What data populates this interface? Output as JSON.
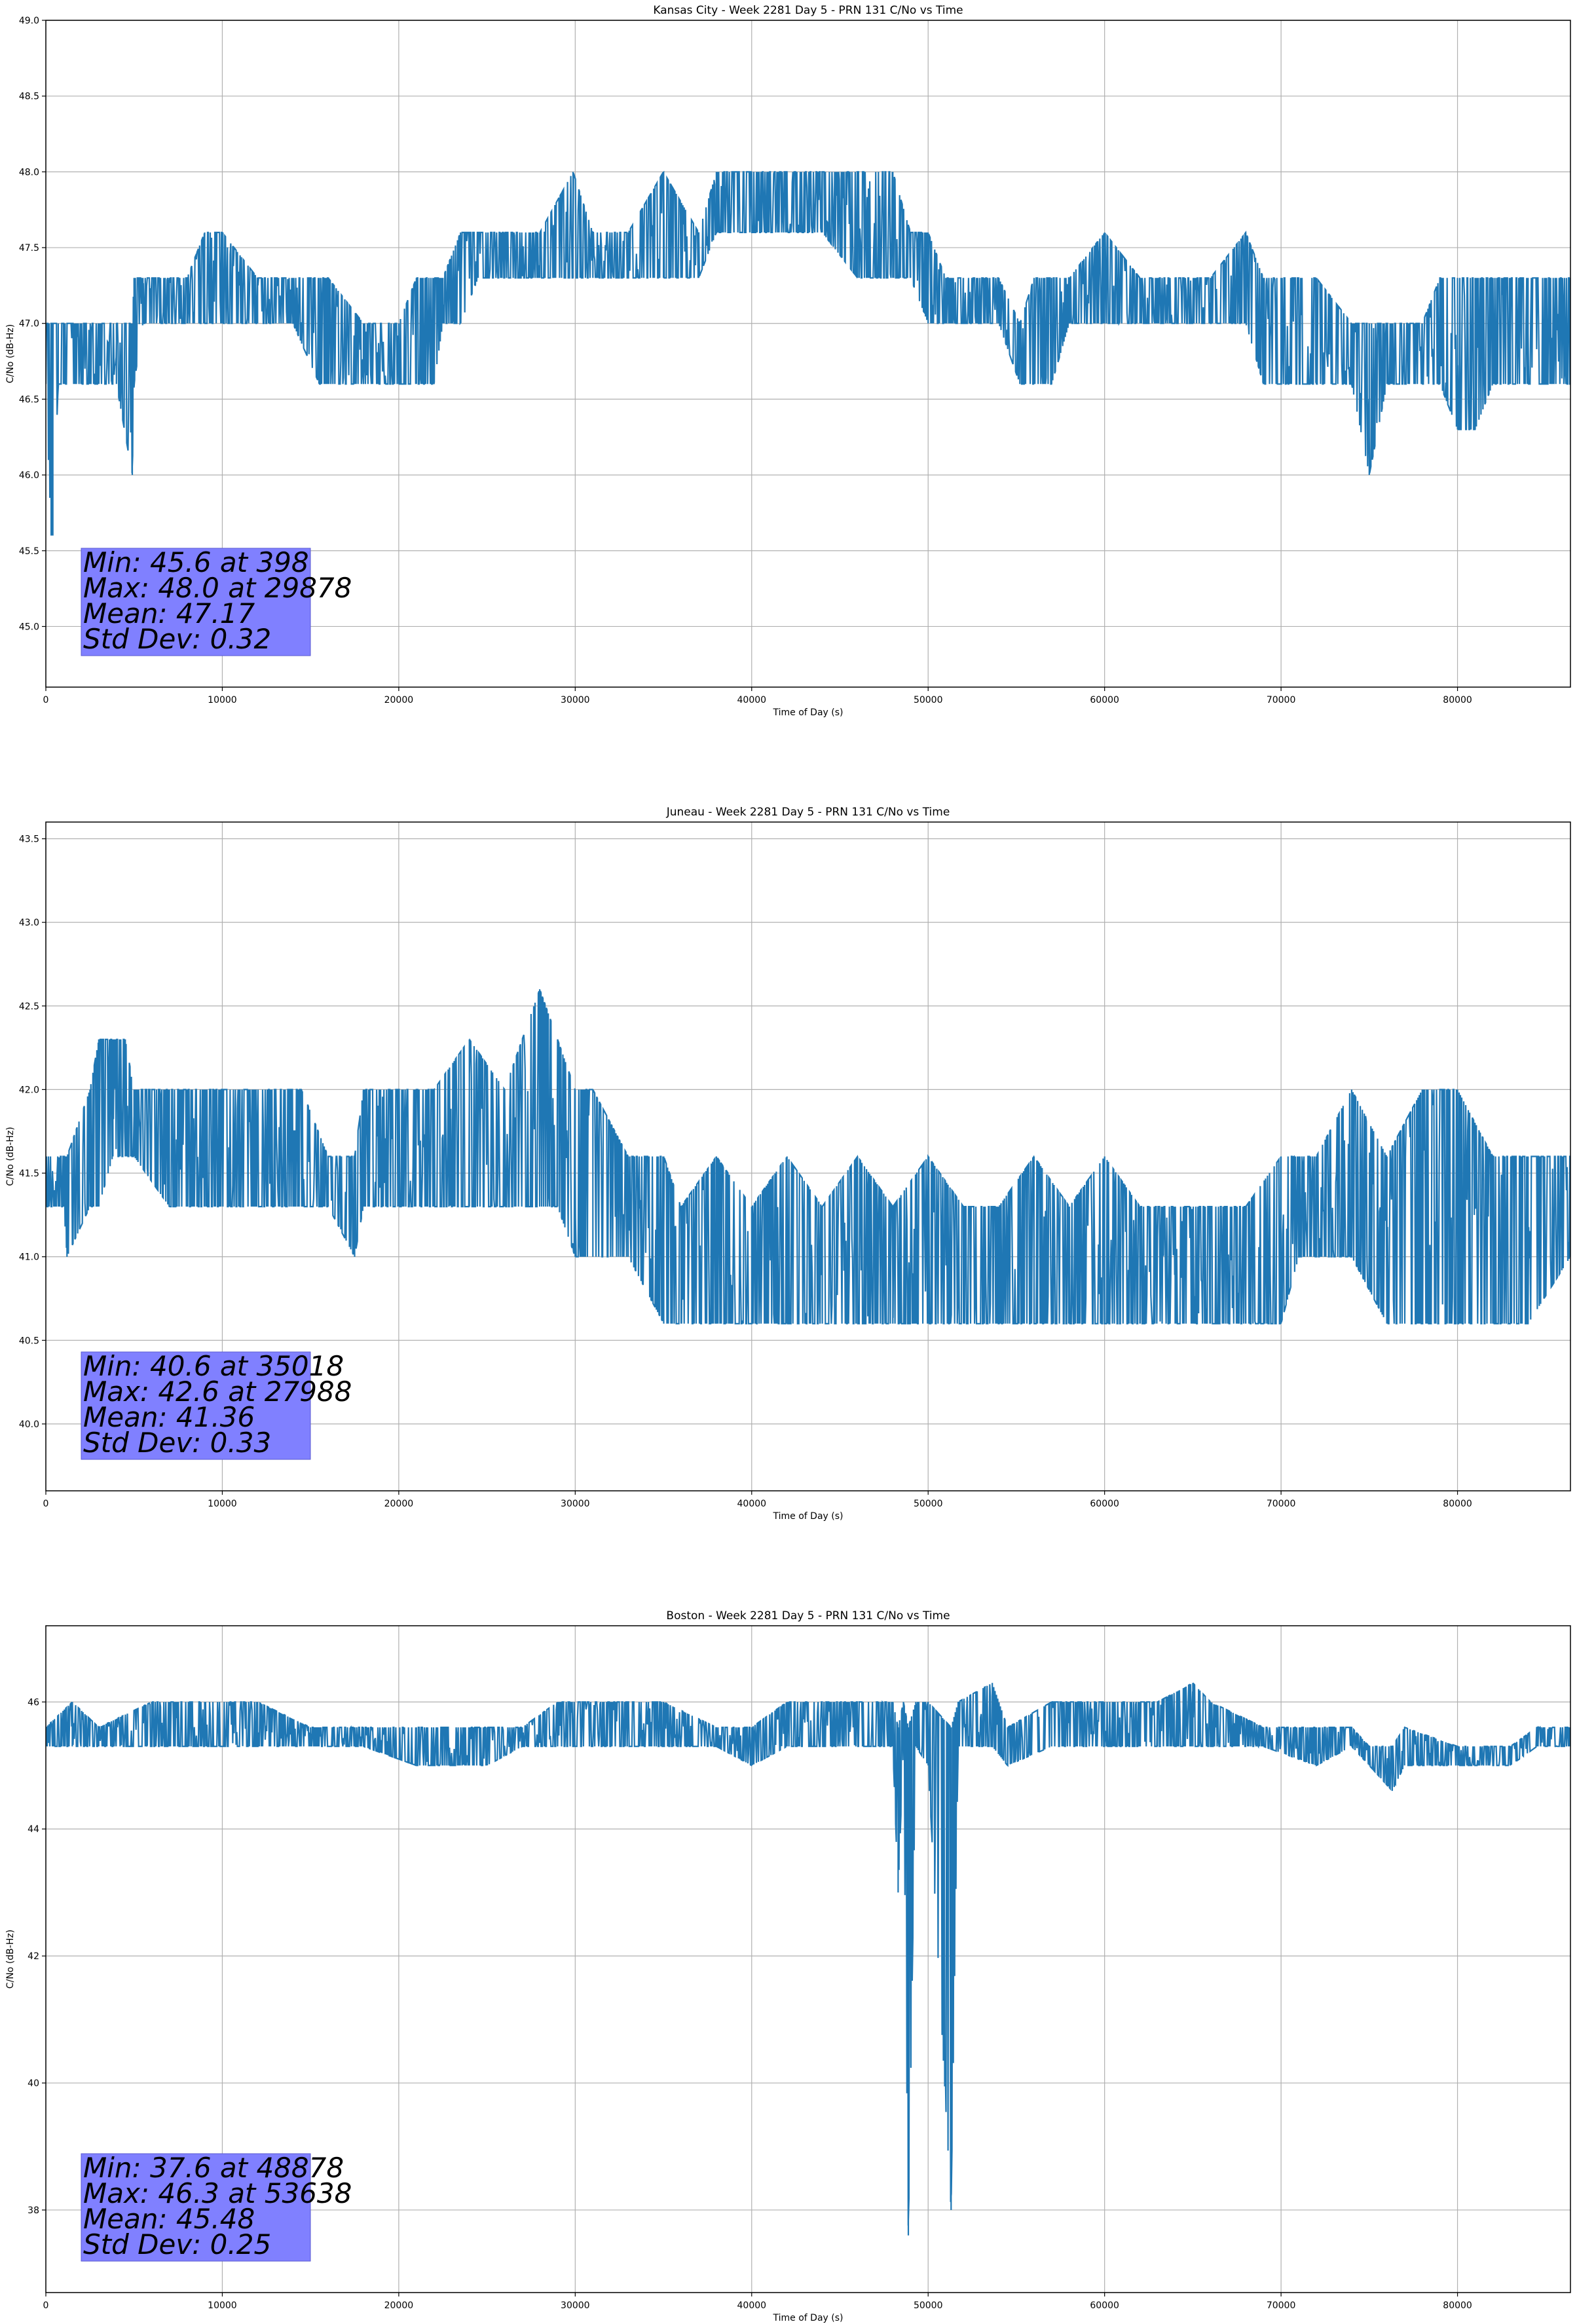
{
  "chart_data": [
    {
      "type": "line",
      "title": "Kansas City - Week 2281 Day 5 - PRN 131 C/No vs Time",
      "xlabel": "Time of Day (s)",
      "ylabel": "C/No (dB-Hz)",
      "xlim": [
        0,
        86400
      ],
      "ylim": [
        44.6,
        49.0
      ],
      "xticks": [
        0,
        10000,
        20000,
        30000,
        40000,
        50000,
        60000,
        70000,
        80000
      ],
      "xtick_labels": [
        "0",
        "10000",
        "20000",
        "30000",
        "40000",
        "50000",
        "60000",
        "70000",
        "80000"
      ],
      "yticks": [
        45.0,
        45.5,
        46.0,
        46.5,
        47.0,
        47.5,
        48.0,
        48.5,
        49.0
      ],
      "ytick_labels": [
        "45.0",
        "45.5",
        "46.0",
        "46.5",
        "47.0",
        "47.5",
        "48.0",
        "48.5",
        "49.0"
      ],
      "grid": true,
      "color": "#1f77b4",
      "series": [
        {
          "x": [
            0,
            300,
            398,
            700,
            1000,
            2000,
            3000,
            4000,
            4900,
            5000,
            5500,
            6000,
            7000,
            8000,
            9000,
            10000,
            12000,
            14000,
            15500,
            16000,
            18000,
            20000,
            21000,
            22000,
            22500,
            23500,
            24500,
            26000,
            28000,
            29878,
            31000,
            33000,
            35000,
            37000,
            38000,
            39000,
            40000,
            42000,
            44000,
            46000,
            48000,
            49000,
            50000,
            51000,
            52000,
            54000,
            55200,
            56000,
            57000,
            58000,
            60000,
            62000,
            64000,
            66000,
            68000,
            69000,
            70000,
            72000,
            74000,
            75000,
            76000,
            78000,
            79000,
            80000,
            81000,
            82000,
            83000,
            84000,
            85000,
            86400
          ],
          "low": [
            46.6,
            45.6,
            45.6,
            46.6,
            46.6,
            46.6,
            46.6,
            46.6,
            46.0,
            46.6,
            47.0,
            47.0,
            47.0,
            47.0,
            47.0,
            47.0,
            47.0,
            47.0,
            46.6,
            46.6,
            46.6,
            46.6,
            46.6,
            46.6,
            47.0,
            47.0,
            47.3,
            47.3,
            47.3,
            47.3,
            47.3,
            47.3,
            47.3,
            47.3,
            47.6,
            47.6,
            47.6,
            47.6,
            47.6,
            47.3,
            47.3,
            47.3,
            47.0,
            47.0,
            47.0,
            47.0,
            46.6,
            46.6,
            46.6,
            47.0,
            47.0,
            47.0,
            47.0,
            47.0,
            47.0,
            46.6,
            46.6,
            46.6,
            46.6,
            46.0,
            46.6,
            46.6,
            46.6,
            46.3,
            46.3,
            46.6,
            46.6,
            46.6,
            46.6,
            46.6
          ],
          "high": [
            47.0,
            47.0,
            47.0,
            47.0,
            47.0,
            47.0,
            47.0,
            47.0,
            47.0,
            47.3,
            47.3,
            47.3,
            47.3,
            47.3,
            47.6,
            47.6,
            47.3,
            47.3,
            47.3,
            47.3,
            47.0,
            47.0,
            47.3,
            47.3,
            47.3,
            47.6,
            47.6,
            47.6,
            47.6,
            48.0,
            47.6,
            47.6,
            48.0,
            47.6,
            48.0,
            48.0,
            48.0,
            48.0,
            48.0,
            48.0,
            48.0,
            47.6,
            47.6,
            47.3,
            47.3,
            47.3,
            47.0,
            47.3,
            47.3,
            47.3,
            47.6,
            47.3,
            47.3,
            47.3,
            47.6,
            47.3,
            47.3,
            47.3,
            47.0,
            47.0,
            47.0,
            47.0,
            47.3,
            47.3,
            47.3,
            47.3,
            47.3,
            47.3,
            47.3,
            47.3
          ]
        }
      ],
      "stats": [
        "Min: 45.6 at 398",
        "Max: 48.0 at 29878",
        "Mean: 47.17",
        "Std Dev: 0.32"
      ]
    },
    {
      "type": "line",
      "title": "Juneau - Week 2281 Day 5 - PRN 131 C/No vs Time",
      "xlabel": "Time of Day (s)",
      "ylabel": "C/No (dB-Hz)",
      "xlim": [
        0,
        86400
      ],
      "ylim": [
        39.6,
        43.6
      ],
      "xticks": [
        0,
        10000,
        20000,
        30000,
        40000,
        50000,
        60000,
        70000,
        80000
      ],
      "xtick_labels": [
        "0",
        "10000",
        "20000",
        "30000",
        "40000",
        "50000",
        "60000",
        "70000",
        "80000"
      ],
      "yticks": [
        40.0,
        40.5,
        41.0,
        41.5,
        42.0,
        42.5,
        43.0,
        43.5
      ],
      "ytick_labels": [
        "40.0",
        "40.5",
        "41.0",
        "41.5",
        "42.0",
        "42.5",
        "43.0",
        "43.5"
      ],
      "grid": true,
      "color": "#1f77b4",
      "series": [
        {
          "x": [
            0,
            1000,
            1200,
            2500,
            3000,
            3800,
            4500,
            5000,
            7000,
            9000,
            11000,
            13000,
            14500,
            16000,
            17500,
            18000,
            20000,
            22000,
            24000,
            26000,
            27988,
            29000,
            30000,
            31000,
            33000,
            35018,
            36000,
            38000,
            40000,
            42000,
            44000,
            46000,
            48000,
            50000,
            52000,
            54000,
            56000,
            58000,
            60000,
            62000,
            64000,
            66000,
            68000,
            70000,
            71000,
            72000,
            74000,
            76000,
            78000,
            80000,
            82000,
            84000,
            86400
          ],
          "low": [
            41.3,
            41.3,
            41.0,
            41.3,
            41.3,
            41.6,
            41.6,
            41.6,
            41.3,
            41.3,
            41.3,
            41.3,
            41.3,
            41.3,
            41.0,
            41.3,
            41.3,
            41.3,
            41.3,
            41.3,
            41.3,
            41.3,
            41.0,
            41.0,
            41.0,
            40.6,
            40.6,
            40.6,
            40.6,
            40.6,
            40.6,
            40.6,
            40.6,
            40.6,
            40.6,
            40.6,
            40.6,
            40.6,
            40.6,
            40.6,
            40.6,
            40.6,
            40.6,
            40.6,
            41.0,
            41.0,
            41.0,
            40.6,
            40.6,
            40.6,
            40.6,
            40.6,
            41.0
          ],
          "high": [
            41.6,
            41.6,
            41.6,
            42.0,
            42.3,
            42.3,
            42.3,
            42.0,
            42.0,
            42.0,
            42.0,
            42.0,
            42.0,
            41.6,
            41.6,
            42.0,
            42.0,
            42.0,
            42.3,
            42.0,
            42.6,
            42.3,
            42.0,
            42.0,
            41.6,
            41.6,
            41.3,
            41.6,
            41.3,
            41.6,
            41.3,
            41.6,
            41.3,
            41.6,
            41.3,
            41.3,
            41.6,
            41.3,
            41.6,
            41.3,
            41.3,
            41.3,
            41.3,
            41.6,
            41.6,
            41.6,
            42.0,
            41.6,
            42.0,
            42.0,
            41.6,
            41.6,
            41.6
          ]
        }
      ],
      "stats": [
        "Min: 40.6 at 35018",
        "Max: 42.6 at 27988",
        "Mean: 41.36",
        "Std Dev: 0.33"
      ]
    },
    {
      "type": "line",
      "title": "Boston - Week 2281 Day 5 - PRN 131 C/No vs Time",
      "xlabel": "Time of Day (s)",
      "ylabel": "C/No (dB-Hz)",
      "xlim": [
        0,
        86400
      ],
      "ylim": [
        36.7,
        47.2
      ],
      "xticks": [
        0,
        10000,
        20000,
        30000,
        40000,
        50000,
        60000,
        70000,
        80000
      ],
      "xtick_labels": [
        "0",
        "10000",
        "20000",
        "30000",
        "40000",
        "50000",
        "60000",
        "70000",
        "80000"
      ],
      "yticks": [
        38,
        40,
        42,
        44,
        46
      ],
      "ytick_labels": [
        "38",
        "40",
        "42",
        "44",
        "46"
      ],
      "grid": true,
      "color": "#1f77b4",
      "series": [
        {
          "x": [
            0,
            1500,
            3000,
            6000,
            9000,
            12000,
            15000,
            18000,
            21000,
            22500,
            25000,
            27000,
            29000,
            32000,
            35000,
            38000,
            40000,
            42000,
            45000,
            48000,
            48300,
            48600,
            48878,
            49300,
            50000,
            51300,
            51700,
            53638,
            54500,
            57000,
            60000,
            63000,
            65000,
            66000,
            69000,
            72000,
            74000,
            75000,
            76300,
            77000,
            80000,
            83000,
            84500,
            86400
          ],
          "low": [
            45.3,
            45.3,
            45.3,
            45.3,
            45.3,
            45.3,
            45.3,
            45.3,
            45.0,
            45.0,
            45.0,
            45.3,
            45.3,
            45.3,
            45.3,
            45.3,
            45.0,
            45.3,
            45.3,
            45.3,
            43.0,
            45.3,
            37.6,
            45.3,
            45.0,
            38.0,
            45.3,
            45.3,
            45.0,
            45.3,
            45.3,
            45.3,
            45.3,
            45.3,
            45.3,
            45.0,
            45.3,
            45.0,
            44.6,
            45.0,
            45.0,
            45.0,
            45.3,
            45.3
          ],
          "high": [
            45.6,
            46.0,
            45.6,
            46.0,
            46.0,
            46.0,
            45.6,
            45.6,
            45.6,
            45.6,
            45.6,
            45.6,
            46.0,
            46.0,
            46.0,
            45.6,
            45.6,
            46.0,
            46.0,
            46.0,
            45.6,
            46.0,
            45.6,
            46.0,
            46.0,
            45.6,
            46.0,
            46.3,
            45.6,
            46.0,
            46.0,
            46.0,
            46.3,
            46.0,
            45.6,
            45.6,
            45.6,
            45.3,
            45.3,
            45.6,
            45.3,
            45.3,
            45.6,
            45.6
          ]
        }
      ],
      "stats": [
        "Min: 37.6 at 48878",
        "Max: 46.3 at 53638",
        "Mean: 45.48",
        "Std Dev: 0.25"
      ]
    }
  ]
}
